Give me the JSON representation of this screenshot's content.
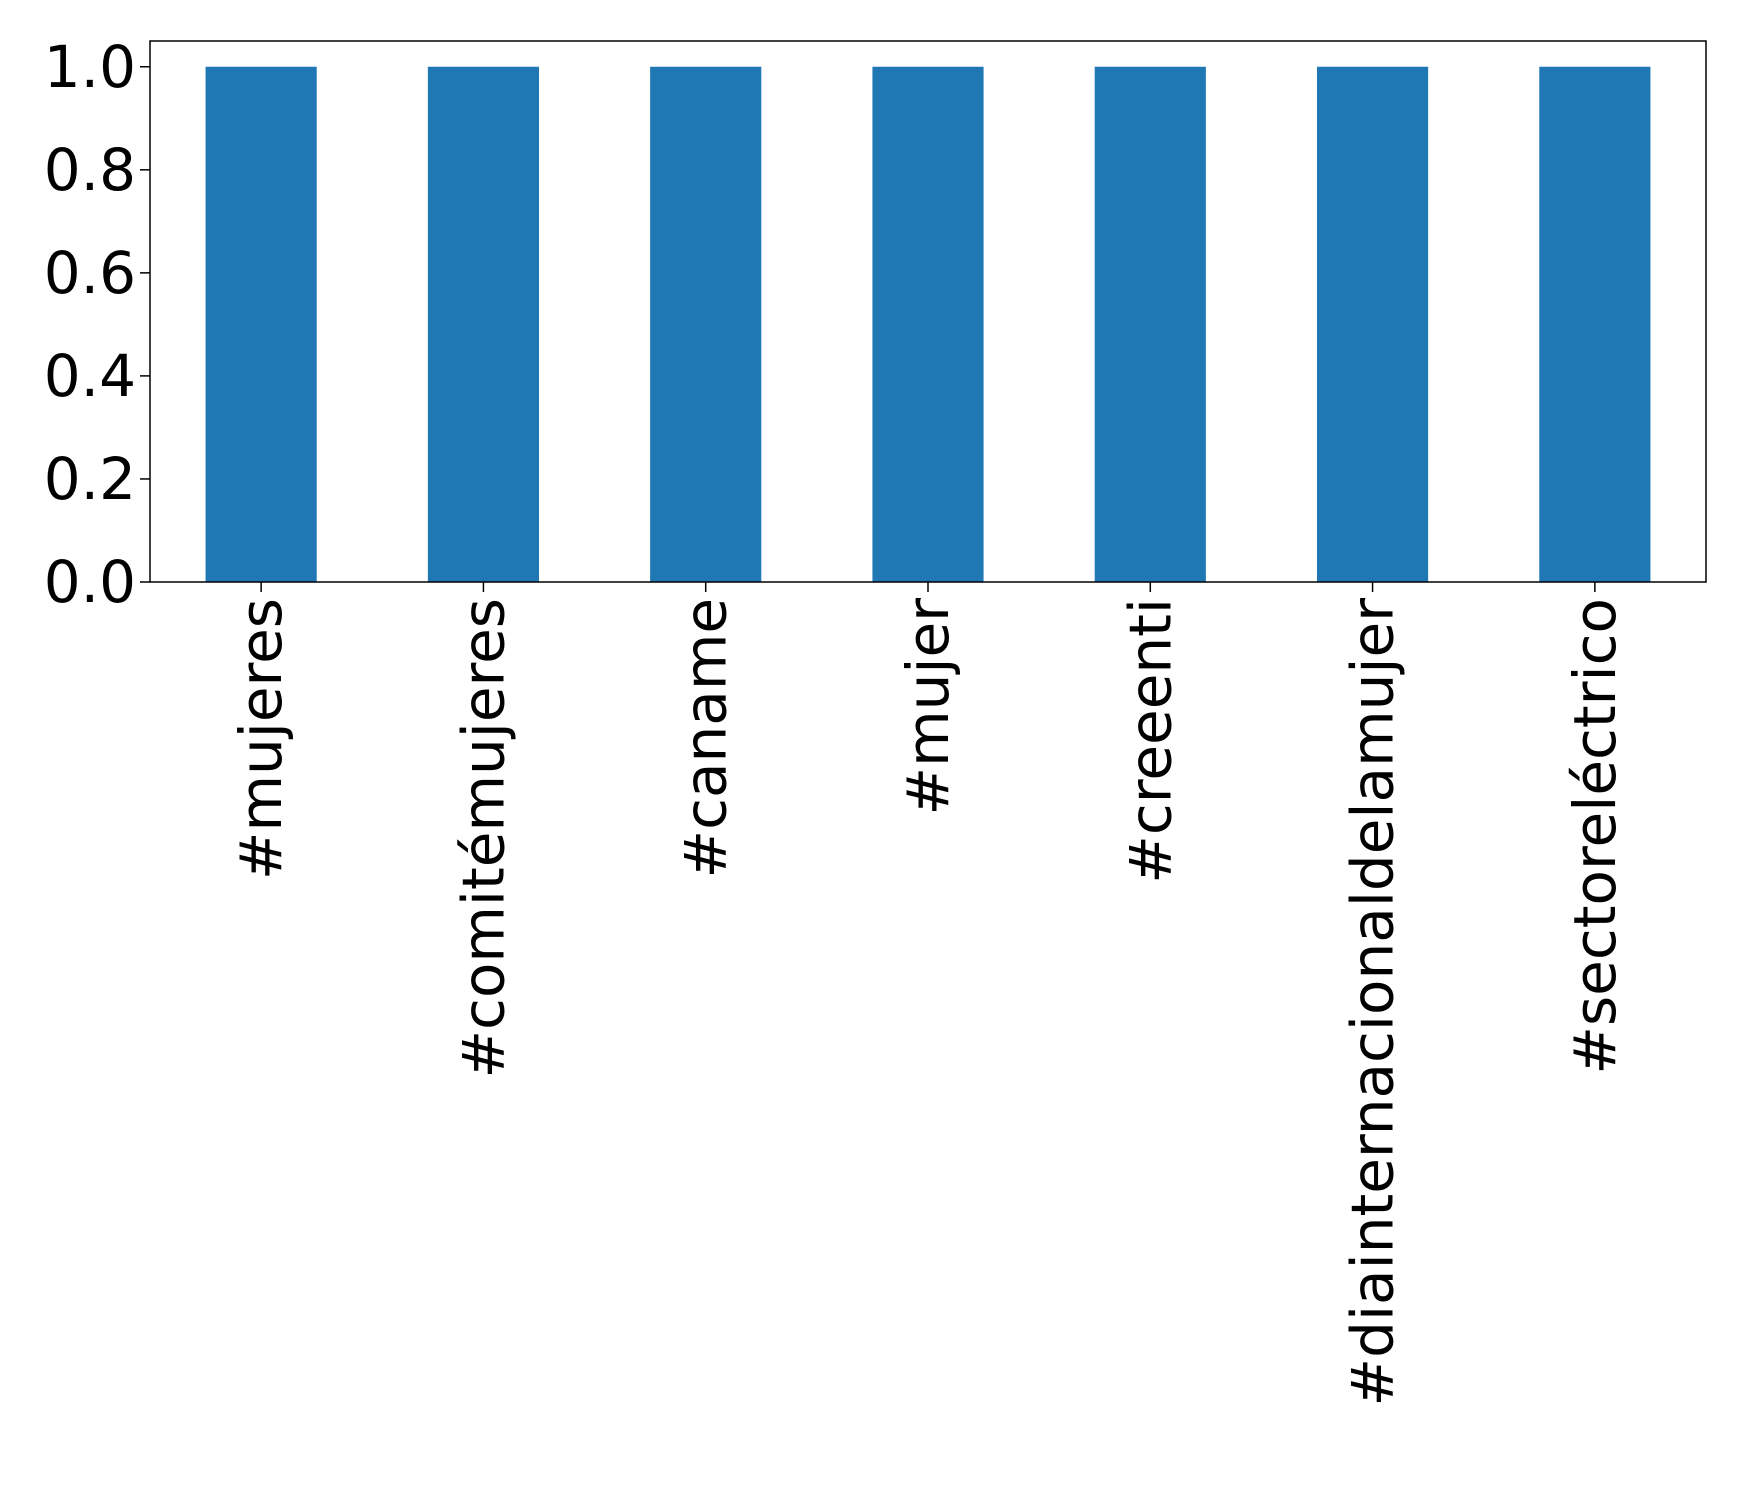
{
  "chart_data": {
    "type": "bar",
    "categories": [
      "#mujeres",
      "#comitémujeres",
      "#caname",
      "#mujer",
      "#creeenti",
      "#diainternacionaldelamujer",
      "#sectoreléctrico"
    ],
    "values": [
      1.0,
      1.0,
      1.0,
      1.0,
      1.0,
      1.0,
      1.0
    ],
    "title": "",
    "xlabel": "",
    "ylabel": "",
    "ylim": [
      0,
      1.05
    ],
    "yticks": [
      "0.0",
      "0.2",
      "0.4",
      "0.6",
      "0.8",
      "1.0"
    ],
    "grid": false,
    "legend": "none",
    "bar_color": "#1f77b4",
    "axis_color": "#000000"
  }
}
